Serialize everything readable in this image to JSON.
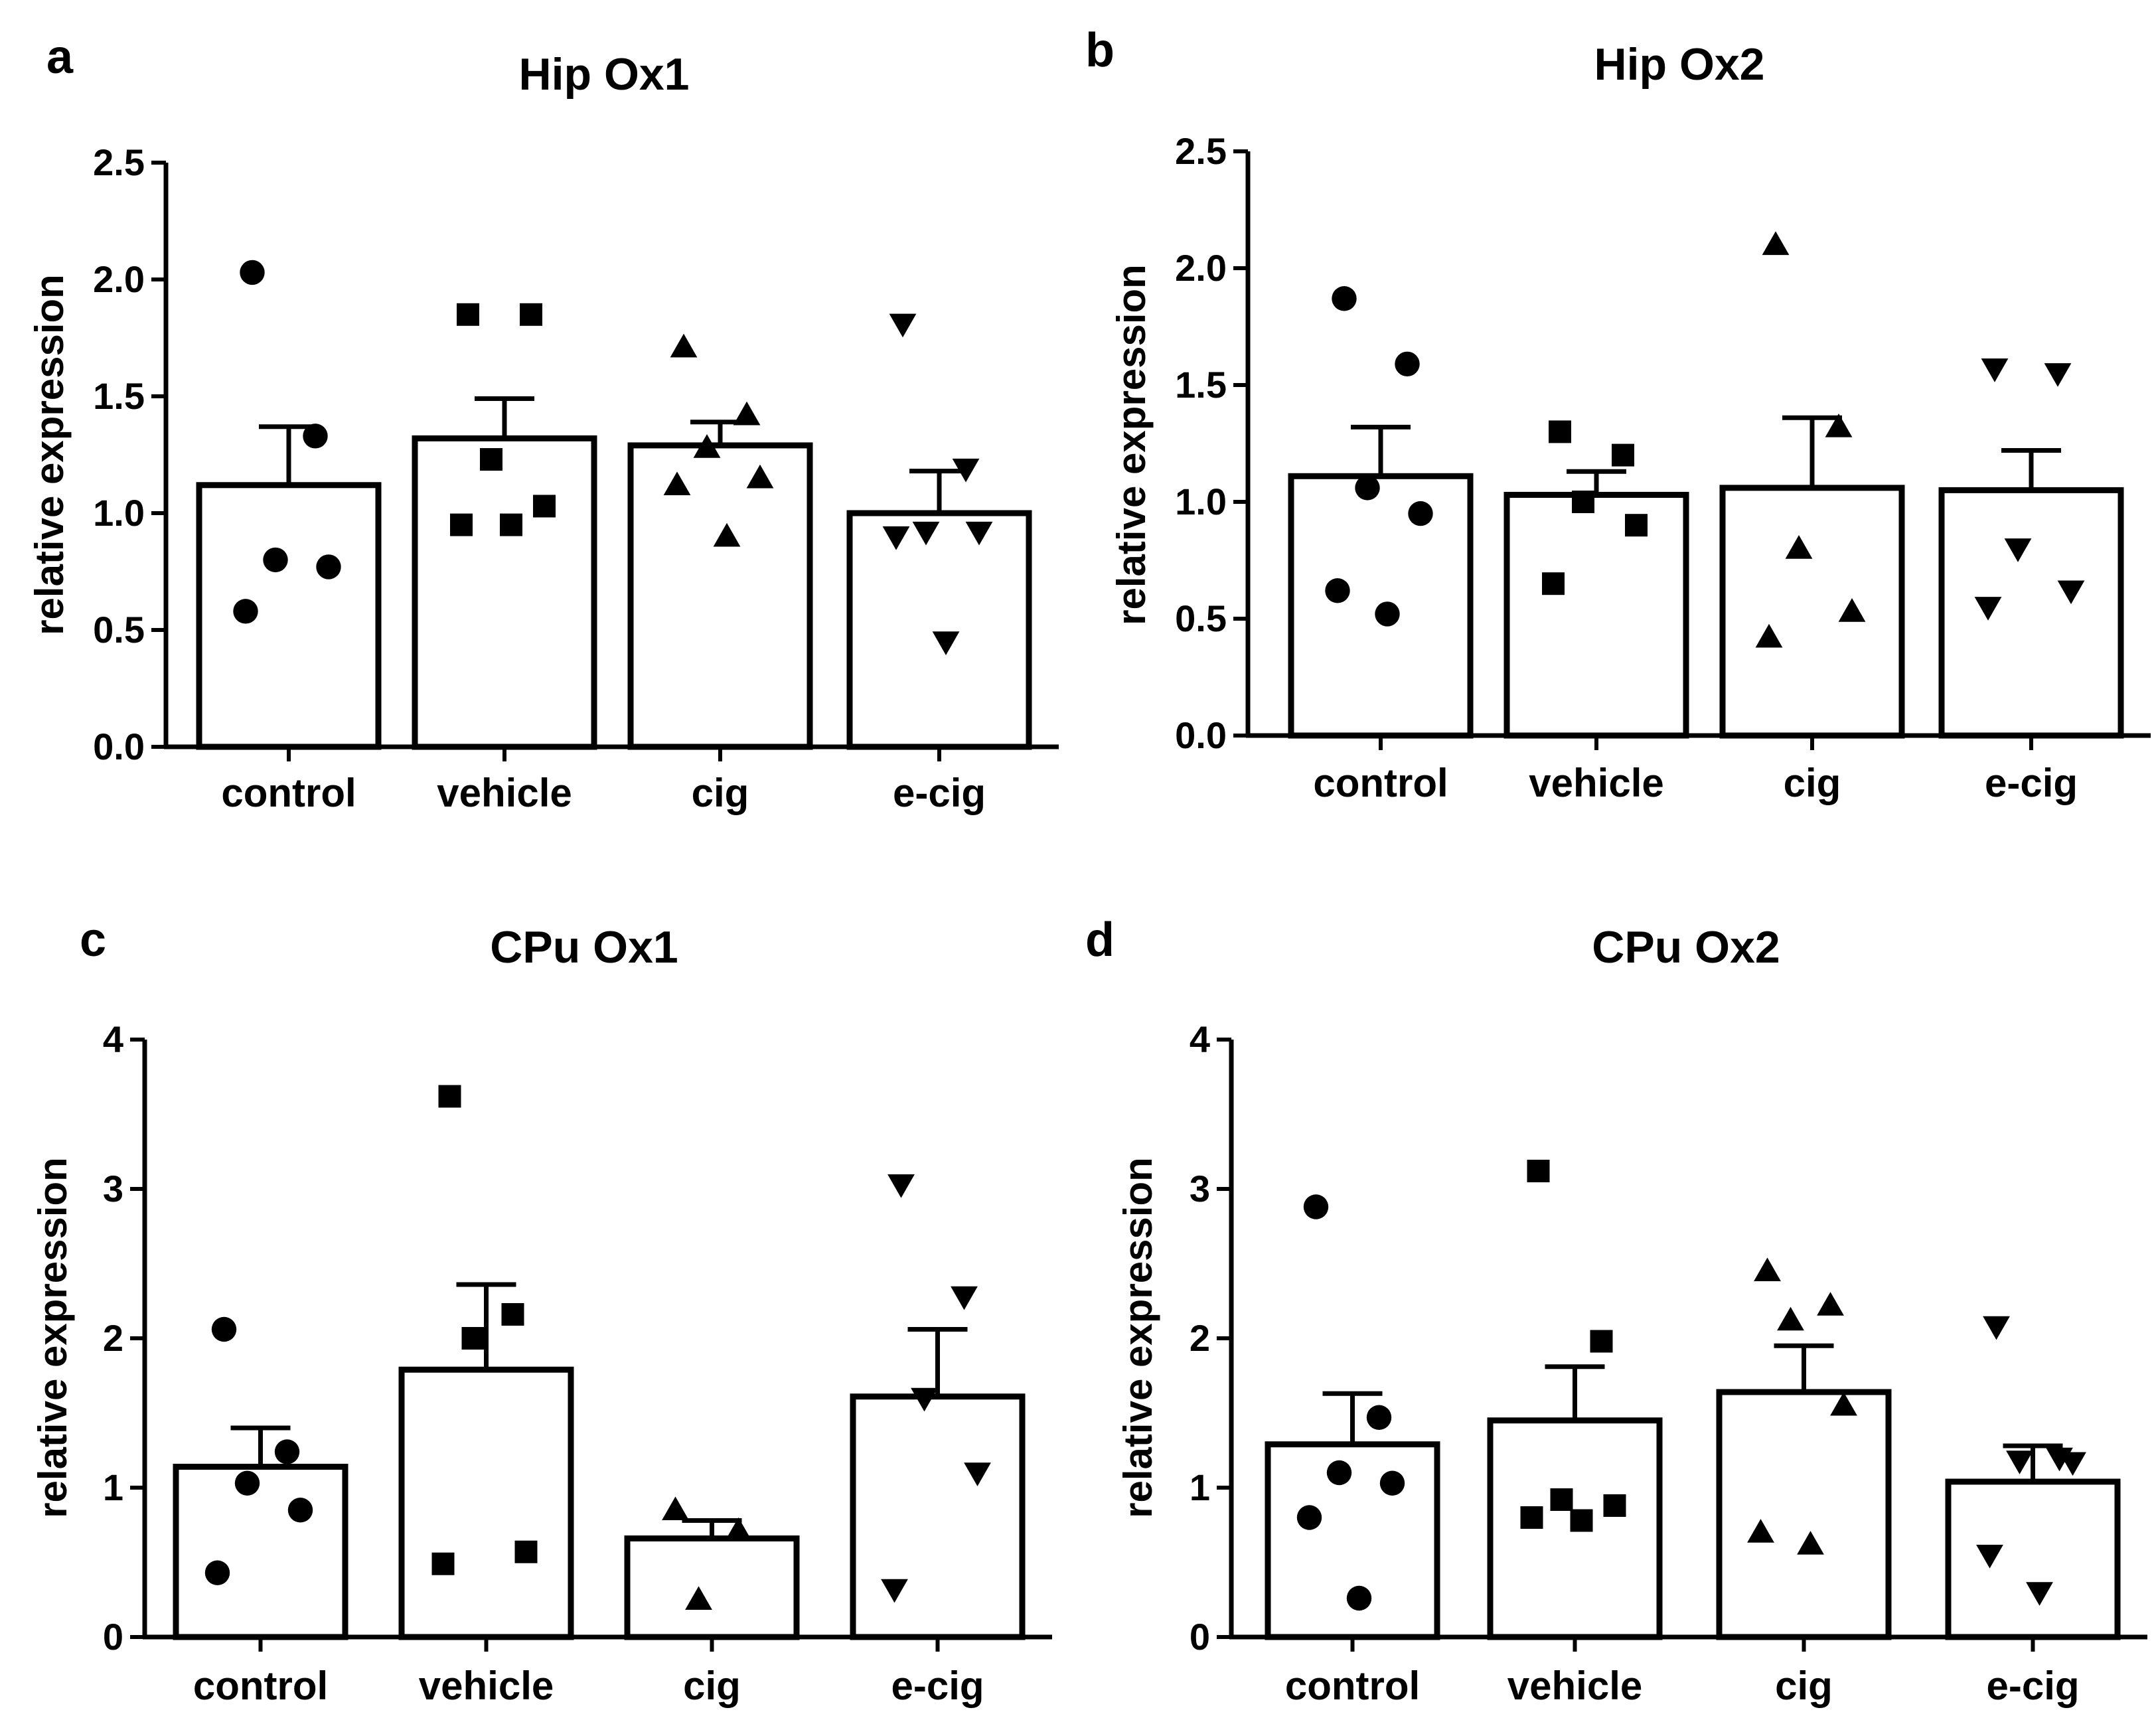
{
  "figure": {
    "panels": [
      {
        "letter": "a",
        "title": "Hip Ox1"
      },
      {
        "letter": "b",
        "title": "Hip Ox2"
      },
      {
        "letter": "c",
        "title": "CPu Ox1"
      },
      {
        "letter": "d",
        "title": "CPu Ox2"
      }
    ]
  },
  "chart_data": [
    {
      "type": "bar",
      "panel": "a",
      "title": "Hip Ox1",
      "xlabel": "",
      "ylabel": "relative expression",
      "ylim": [
        0,
        2.5
      ],
      "yticks": [
        "0.0",
        "0.5",
        "1.0",
        "1.5",
        "2.0",
        "2.5"
      ],
      "categories": [
        "control",
        "vehicle",
        "cig",
        "e-cig"
      ],
      "markers": [
        "circle",
        "square",
        "triangle-up",
        "triangle-down"
      ],
      "means": [
        1.12,
        1.32,
        1.29,
        1.0
      ],
      "sem": [
        0.25,
        0.17,
        0.1,
        0.18
      ],
      "points": [
        [
          2.03,
          1.33,
          0.8,
          0.77,
          0.58
        ],
        [
          1.85,
          1.85,
          1.23,
          1.03,
          0.95,
          0.95
        ],
        [
          1.71,
          1.42,
          1.28,
          1.15,
          1.12,
          0.9
        ],
        [
          1.81,
          1.19,
          0.92,
          0.92,
          0.9,
          0.45
        ]
      ]
    },
    {
      "type": "bar",
      "panel": "b",
      "title": "Hip Ox2",
      "xlabel": "",
      "ylabel": "relative expression",
      "ylim": [
        0,
        2.5
      ],
      "yticks": [
        "0.0",
        "0.5",
        "1.0",
        "1.5",
        "2.0",
        "2.5"
      ],
      "categories": [
        "control",
        "vehicle",
        "cig",
        "e-cig"
      ],
      "markers": [
        "circle",
        "square",
        "triangle-up",
        "triangle-down"
      ],
      "means": [
        1.11,
        1.03,
        1.06,
        1.05
      ],
      "sem": [
        0.21,
        0.1,
        0.3,
        0.17
      ],
      "points": [
        [
          1.87,
          1.59,
          1.06,
          0.95,
          0.62,
          0.52
        ],
        [
          1.3,
          1.2,
          1.0,
          0.9,
          0.65
        ],
        [
          2.1,
          1.32,
          0.8,
          0.53,
          0.42
        ],
        [
          1.57,
          1.55,
          0.8,
          0.62,
          0.55
        ]
      ]
    },
    {
      "type": "bar",
      "panel": "c",
      "title": "CPu Ox1",
      "xlabel": "",
      "ylabel": "relative expression",
      "ylim": [
        0,
        4
      ],
      "yticks": [
        "0",
        "1",
        "2",
        "3",
        "4"
      ],
      "categories": [
        "control",
        "vehicle",
        "cig",
        "e-cig"
      ],
      "markers": [
        "circle",
        "square",
        "triangle-up",
        "triangle-down"
      ],
      "means": [
        1.14,
        1.79,
        0.66,
        1.61
      ],
      "sem": [
        0.26,
        0.57,
        0.12,
        0.45
      ],
      "points": [
        [
          2.06,
          1.24,
          1.03,
          0.85,
          0.43
        ],
        [
          3.62,
          2.16,
          2.0,
          0.57,
          0.49
        ],
        [
          0.85,
          0.71,
          0.25
        ],
        [
          3.03,
          2.28,
          1.6,
          1.1,
          0.32
        ]
      ]
    },
    {
      "type": "bar",
      "panel": "d",
      "title": "CPu Ox2",
      "xlabel": "",
      "ylabel": "relative expression",
      "ylim": [
        0,
        4
      ],
      "yticks": [
        "0",
        "1",
        "2",
        "3",
        "4"
      ],
      "categories": [
        "control",
        "vehicle",
        "cig",
        "e-cig"
      ],
      "markers": [
        "circle",
        "square",
        "triangle-up",
        "triangle-down"
      ],
      "means": [
        1.29,
        1.45,
        1.64,
        1.04
      ],
      "sem": [
        0.34,
        0.36,
        0.31,
        0.24
      ],
      "points": [
        [
          2.88,
          1.47,
          1.1,
          1.03,
          0.8,
          0.26
        ],
        [
          3.12,
          1.98,
          0.92,
          0.88,
          0.8,
          0.78
        ],
        [
          2.45,
          2.22,
          2.12,
          1.55,
          0.7,
          0.62
        ],
        [
          2.08,
          1.2,
          1.18,
          1.17,
          0.55,
          0.3
        ]
      ]
    }
  ]
}
